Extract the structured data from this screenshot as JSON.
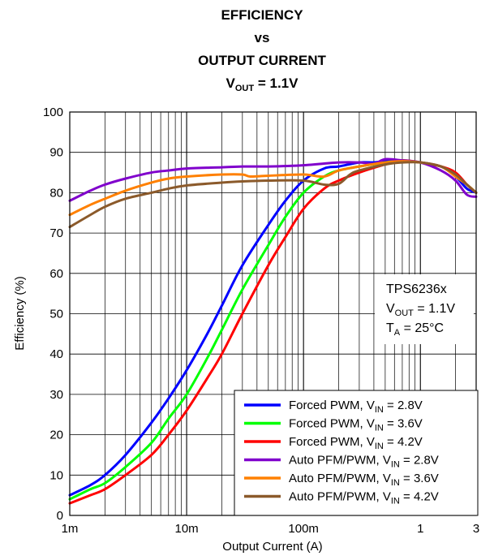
{
  "chart_data": {
    "type": "line",
    "title": {
      "line1": "EFFICIENCY",
      "line2": "vs",
      "line3": "OUTPUT CURRENT",
      "line4_main": "V",
      "line4_sub": "OUT",
      "line4_rest": " = 1.1V"
    },
    "xlabel": "Output Current (A)",
    "ylabel": "Efficiency (%)",
    "xscale": "log",
    "xlim": [
      0.001,
      3
    ],
    "ylim": [
      0,
      100
    ],
    "grid": true,
    "x_ticks": [
      {
        "value": 0.001,
        "label": "1m"
      },
      {
        "value": 0.01,
        "label": "10m"
      },
      {
        "value": 0.1,
        "label": "100m"
      },
      {
        "value": 1,
        "label": "1"
      },
      {
        "value": 3,
        "label": "3"
      }
    ],
    "y_ticks": [
      0,
      10,
      20,
      30,
      40,
      50,
      60,
      70,
      80,
      90,
      100
    ],
    "annotation": {
      "line1": "TPS6236x",
      "line2_main": "V",
      "line2_sub": "OUT",
      "line2_rest": " = 1.1V",
      "line3_main": "T",
      "line3_sub": "A",
      "line3_rest": " = 25°C"
    },
    "legend_position": "bottom-right",
    "series": [
      {
        "name": "Forced PWM, V_IN = 2.8V",
        "legend_pre": "Forced PWM, V",
        "legend_sub": "IN",
        "legend_post": " = 2.8V",
        "color": "#0000ff",
        "points": [
          [
            0.001,
            5
          ],
          [
            0.0015,
            7.5
          ],
          [
            0.002,
            10
          ],
          [
            0.003,
            15
          ],
          [
            0.005,
            23
          ],
          [
            0.007,
            29
          ],
          [
            0.01,
            36
          ],
          [
            0.015,
            45
          ],
          [
            0.02,
            52
          ],
          [
            0.03,
            62
          ],
          [
            0.05,
            72
          ],
          [
            0.07,
            78
          ],
          [
            0.1,
            83
          ],
          [
            0.15,
            86
          ],
          [
            0.2,
            86.5
          ],
          [
            0.3,
            87.5
          ],
          [
            0.4,
            87.5
          ],
          [
            0.5,
            87.8
          ],
          [
            0.7,
            87.8
          ],
          [
            1,
            87.5
          ],
          [
            1.5,
            86.5
          ],
          [
            2,
            84
          ],
          [
            2.5,
            81
          ],
          [
            3,
            80
          ]
        ]
      },
      {
        "name": "Forced PWM, V_IN = 3.6V",
        "legend_pre": "Forced PWM, V",
        "legend_sub": "IN",
        "legend_post": " = 3.6V",
        "color": "#00ff00",
        "points": [
          [
            0.001,
            4
          ],
          [
            0.0015,
            6.5
          ],
          [
            0.002,
            8
          ],
          [
            0.003,
            12
          ],
          [
            0.005,
            18
          ],
          [
            0.007,
            24
          ],
          [
            0.01,
            30
          ],
          [
            0.015,
            39
          ],
          [
            0.02,
            46
          ],
          [
            0.03,
            56
          ],
          [
            0.05,
            67
          ],
          [
            0.07,
            74
          ],
          [
            0.1,
            80
          ],
          [
            0.15,
            84
          ],
          [
            0.2,
            85.5
          ],
          [
            0.3,
            86.5
          ],
          [
            0.5,
            87.5
          ],
          [
            0.7,
            88
          ],
          [
            1,
            87.5
          ],
          [
            1.5,
            86.5
          ],
          [
            2,
            84.5
          ],
          [
            2.5,
            82
          ],
          [
            3,
            80
          ]
        ]
      },
      {
        "name": "Forced PWM, V_IN = 4.2V",
        "legend_pre": "Forced PWM, V",
        "legend_sub": "IN",
        "legend_post": " = 4.2V",
        "color": "#ff0000",
        "points": [
          [
            0.001,
            3
          ],
          [
            0.0015,
            5
          ],
          [
            0.002,
            6.5
          ],
          [
            0.003,
            10
          ],
          [
            0.005,
            15
          ],
          [
            0.007,
            20
          ],
          [
            0.01,
            26
          ],
          [
            0.015,
            34
          ],
          [
            0.02,
            40
          ],
          [
            0.03,
            50
          ],
          [
            0.05,
            62
          ],
          [
            0.07,
            69
          ],
          [
            0.1,
            76
          ],
          [
            0.15,
            81
          ],
          [
            0.2,
            83
          ],
          [
            0.3,
            85
          ],
          [
            0.5,
            87
          ],
          [
            0.7,
            88
          ],
          [
            1,
            87.5
          ],
          [
            1.5,
            86.5
          ],
          [
            2,
            85
          ],
          [
            2.5,
            82
          ],
          [
            3,
            80
          ]
        ]
      },
      {
        "name": "Auto PFM/PWM, V_IN = 2.8V",
        "legend_pre": "Auto PFM/PWM, V",
        "legend_sub": "IN",
        "legend_post": " = 2.8V",
        "color": "#8000cc",
        "points": [
          [
            0.001,
            78
          ],
          [
            0.0015,
            80.5
          ],
          [
            0.002,
            82
          ],
          [
            0.003,
            83.5
          ],
          [
            0.005,
            85
          ],
          [
            0.007,
            85.5
          ],
          [
            0.01,
            86
          ],
          [
            0.02,
            86.3
          ],
          [
            0.03,
            86.5
          ],
          [
            0.05,
            86.5
          ],
          [
            0.1,
            86.8
          ],
          [
            0.2,
            87.5
          ],
          [
            0.3,
            87.5
          ],
          [
            0.4,
            87.2
          ],
          [
            0.5,
            88.3
          ],
          [
            0.7,
            88
          ],
          [
            1,
            87.5
          ],
          [
            1.5,
            85.5
          ],
          [
            2,
            83
          ],
          [
            2.5,
            79.5
          ],
          [
            3,
            79
          ]
        ]
      },
      {
        "name": "Auto PFM/PWM, V_IN = 3.6V",
        "legend_pre": "Auto PFM/PWM, V",
        "legend_sub": "IN",
        "legend_post": " = 3.6V",
        "color": "#ff8000",
        "points": [
          [
            0.001,
            74.5
          ],
          [
            0.0015,
            77
          ],
          [
            0.002,
            78.5
          ],
          [
            0.003,
            80.5
          ],
          [
            0.005,
            82.5
          ],
          [
            0.007,
            83.5
          ],
          [
            0.01,
            84
          ],
          [
            0.02,
            84.5
          ],
          [
            0.03,
            84.5
          ],
          [
            0.035,
            84
          ],
          [
            0.05,
            84.2
          ],
          [
            0.1,
            84.5
          ],
          [
            0.15,
            84
          ],
          [
            0.2,
            85.5
          ],
          [
            0.3,
            86.5
          ],
          [
            0.5,
            87.5
          ],
          [
            0.7,
            87.8
          ],
          [
            1,
            87.5
          ],
          [
            1.5,
            86.5
          ],
          [
            2,
            84
          ],
          [
            2.5,
            82
          ],
          [
            3,
            80
          ]
        ]
      },
      {
        "name": "Auto PFM/PWM, V_IN = 4.2V",
        "legend_pre": "Auto PFM/PWM, V",
        "legend_sub": "IN",
        "legend_post": " = 4.2V",
        "color": "#8b5a2b",
        "points": [
          [
            0.001,
            71.5
          ],
          [
            0.0015,
            74.5
          ],
          [
            0.002,
            76.5
          ],
          [
            0.003,
            78.5
          ],
          [
            0.005,
            80
          ],
          [
            0.007,
            81
          ],
          [
            0.01,
            81.8
          ],
          [
            0.02,
            82.5
          ],
          [
            0.03,
            82.8
          ],
          [
            0.05,
            83
          ],
          [
            0.1,
            83
          ],
          [
            0.15,
            82
          ],
          [
            0.2,
            82.2
          ],
          [
            0.25,
            84.5
          ],
          [
            0.3,
            85.5
          ],
          [
            0.5,
            87
          ],
          [
            0.7,
            87.5
          ],
          [
            1,
            87.5
          ],
          [
            1.5,
            86.5
          ],
          [
            2,
            84.5
          ],
          [
            2.5,
            82
          ],
          [
            3,
            80
          ]
        ]
      }
    ]
  }
}
